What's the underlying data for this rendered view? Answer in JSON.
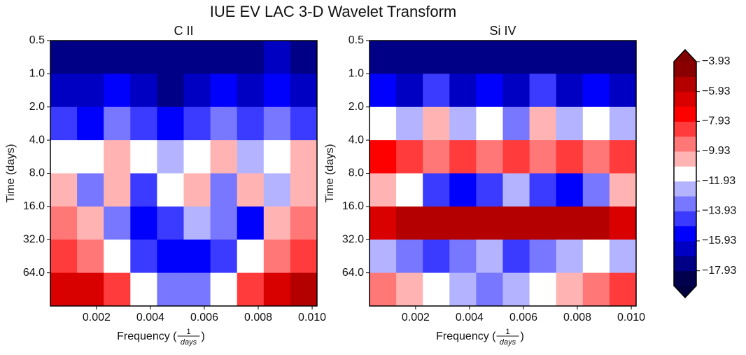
{
  "title": "IUE EV LAC 3-D Wavelet Transform",
  "chart_data": [
    {
      "type": "contour",
      "title": "C II",
      "xlabel": {
        "text": "Frequency (",
        "num": "1",
        "den": "days",
        "close": ")"
      },
      "ylabel": "Time (days)",
      "xlim": [
        0.00029,
        0.01018
      ],
      "xticks": [
        0.002,
        0.004,
        0.006,
        {
          "value": 0.008,
          "label": "0.008"
        },
        {
          "value": 0.01,
          "label": "0.010"
        }
      ],
      "ylim": [
        0.5,
        128
      ],
      "yscale": "log",
      "yinverted": true,
      "yticks": [
        0.5,
        {
          "value": 1,
          "label": "1.0"
        },
        {
          "value": 2,
          "label": "2.0"
        },
        {
          "value": 4,
          "label": "4.0"
        },
        {
          "value": 8,
          "label": "8.0"
        },
        {
          "value": 16,
          "label": "16.0"
        },
        {
          "value": 32,
          "label": "32.0"
        },
        {
          "value": 64,
          "label": "64.0"
        }
      ],
      "z": [
        [
          -17.5,
          -17.8,
          -17.2,
          -17.6,
          -17.9,
          -17.4,
          -17.0,
          -17.6,
          -16.8,
          -17.3
        ],
        [
          -16.2,
          -16.8,
          -15.9,
          -16.5,
          -17.0,
          -16.3,
          -15.7,
          -16.6,
          -15.2,
          -16.4
        ],
        [
          -14.6,
          -15.2,
          -13.8,
          -14.9,
          -15.5,
          -14.1,
          -13.5,
          -14.8,
          -13.2,
          -14.5
        ],
        [
          -11.2,
          -11.8,
          -10.7,
          -11.5,
          -12.4,
          -11.0,
          -10.8,
          -12.0,
          -11.4,
          -10.6
        ],
        [
          -10.9,
          -13.5,
          -10.2,
          -14.2,
          -11.0,
          -10.3,
          -13.8,
          -10.5,
          -12.8,
          -10.4
        ],
        [
          -9.3,
          -10.2,
          -13.6,
          -15.1,
          -14.0,
          -12.5,
          -13.9,
          -15.0,
          -10.1,
          -9.6
        ],
        [
          -8.4,
          -9.2,
          -11.5,
          -14.3,
          -15.6,
          -15.9,
          -14.8,
          -11.8,
          -9.0,
          -8.2
        ],
        [
          -6.1,
          -6.8,
          -8.5,
          -11.2,
          -13.0,
          -13.4,
          -11.5,
          -8.8,
          -6.5,
          -5.9
        ]
      ]
    },
    {
      "type": "contour",
      "title": "Si IV",
      "xlabel": {
        "text": "Frequency (",
        "num": "1",
        "den": "days",
        "close": ")"
      },
      "ylabel": "Time (days)",
      "xlim": [
        0.00029,
        0.01018
      ],
      "xticks": [
        0.002,
        0.004,
        0.006,
        {
          "value": 0.008,
          "label": "0.008"
        },
        {
          "value": 0.01,
          "label": "0.010"
        }
      ],
      "ylim": [
        0.5,
        128
      ],
      "yscale": "log",
      "yinverted": true,
      "yticks": [
        0.5,
        {
          "value": 1,
          "label": "1.0"
        },
        {
          "value": 2,
          "label": "2.0"
        },
        {
          "value": 4,
          "label": "4.0"
        },
        {
          "value": 8,
          "label": "8.0"
        },
        {
          "value": 16,
          "label": "16.0"
        },
        {
          "value": 32,
          "label": "32.0"
        },
        {
          "value": 64,
          "label": "64.0"
        }
      ],
      "z": [
        [
          -17.6,
          -17.9,
          -17.3,
          -17.8,
          -17.5,
          -17.9,
          -17.2,
          -17.7,
          -17.4,
          -17.8
        ],
        [
          -15.8,
          -16.9,
          -14.9,
          -16.3,
          -15.2,
          -16.7,
          -14.6,
          -16.2,
          -15.5,
          -16.0
        ],
        [
          -11.5,
          -12.6,
          -10.8,
          -12.2,
          -11.7,
          -13.4,
          -10.9,
          -12.8,
          -11.3,
          -12.0
        ],
        [
          -7.6,
          -8.3,
          -9.1,
          -8.8,
          -9.5,
          -8.6,
          -9.2,
          -8.9,
          -9.7,
          -8.4
        ],
        [
          -10.3,
          -11.8,
          -14.6,
          -15.3,
          -14.1,
          -12.7,
          -14.8,
          -15.5,
          -13.2,
          -10.9
        ],
        [
          -6.2,
          -5.6,
          -5.2,
          -5.4,
          -5.3,
          -5.5,
          -5.1,
          -5.4,
          -5.7,
          -6.3
        ],
        [
          -12.4,
          -13.6,
          -14.5,
          -13.2,
          -12.8,
          -14.1,
          -13.5,
          -12.6,
          -11.9,
          -12.2
        ],
        [
          -9.1,
          -10.2,
          -11.4,
          -12.3,
          -13.1,
          -12.9,
          -11.6,
          -10.5,
          -9.4,
          -8.7
        ]
      ]
    }
  ],
  "colorbar": {
    "levels": [
      -18.93,
      -17.93,
      -16.93,
      -15.93,
      -14.93,
      -13.93,
      -12.93,
      -11.93,
      -10.93,
      -9.93,
      -8.93,
      -7.93,
      -6.93,
      -5.93,
      -4.93,
      -3.93
    ],
    "colors": [
      "#00004c",
      "#000087",
      "#0000c2",
      "#0000fd",
      "#3b3bff",
      "#7777ff",
      "#b3b3ff",
      "#ffffff",
      "#ffb3b3",
      "#ff7777",
      "#ff3b3b",
      "#fd0000",
      "#d90000",
      "#b50000",
      "#8a0000"
    ],
    "under": "#000040",
    "over": "#800000",
    "ticks": [
      {
        "value": -17.93,
        "label": "−17.93"
      },
      {
        "value": -15.93,
        "label": "−15.93"
      },
      {
        "value": -13.93,
        "label": "−13.93"
      },
      {
        "value": -11.93,
        "label": "−11.93"
      },
      {
        "value": -9.93,
        "label": "−9.93"
      },
      {
        "value": -7.93,
        "label": "−7.93"
      },
      {
        "value": -5.93,
        "label": "−5.93"
      },
      {
        "value": -3.93,
        "label": "−3.93"
      }
    ]
  }
}
